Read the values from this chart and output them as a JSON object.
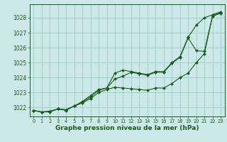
{
  "bg_color": "#cce8e8",
  "grid_color": "#99cccc",
  "line_color": "#1a5c1a",
  "marker_color": "#1a5c1a",
  "xlabel": "Graphe pression niveau de la mer (hPa)",
  "xlabel_fontsize": 6.5,
  "ylim": [
    1021.4,
    1028.9
  ],
  "xlim": [
    -0.5,
    23.5
  ],
  "yticks": [
    1022,
    1023,
    1024,
    1025,
    1026,
    1027,
    1028
  ],
  "xticks": [
    0,
    1,
    2,
    3,
    4,
    5,
    6,
    7,
    8,
    9,
    10,
    11,
    12,
    13,
    14,
    15,
    16,
    17,
    18,
    19,
    20,
    21,
    22,
    23
  ],
  "series1": [
    1021.8,
    1021.7,
    1021.7,
    1021.9,
    1021.8,
    1022.1,
    1022.4,
    1022.8,
    1023.2,
    1023.3,
    1024.3,
    1024.5,
    1024.4,
    1024.3,
    1024.2,
    1024.4,
    1024.4,
    1025.0,
    1025.4,
    1026.7,
    1027.5,
    1028.0,
    1028.2,
    1028.4
  ],
  "series2": [
    1021.8,
    1021.7,
    1021.75,
    1021.9,
    1021.85,
    1022.1,
    1022.35,
    1022.7,
    1023.15,
    1023.3,
    1023.9,
    1024.1,
    1024.35,
    1024.25,
    1024.15,
    1024.35,
    1024.35,
    1024.95,
    1025.35,
    1026.65,
    1025.8,
    1025.75,
    1028.15,
    1028.35
  ],
  "series3": [
    1021.8,
    1021.7,
    1021.75,
    1021.9,
    1021.85,
    1022.1,
    1022.3,
    1022.6,
    1023.0,
    1023.2,
    1023.35,
    1023.3,
    1023.25,
    1023.2,
    1023.15,
    1023.3,
    1023.3,
    1023.6,
    1024.0,
    1024.3,
    1025.0,
    1025.6,
    1028.1,
    1028.3
  ]
}
